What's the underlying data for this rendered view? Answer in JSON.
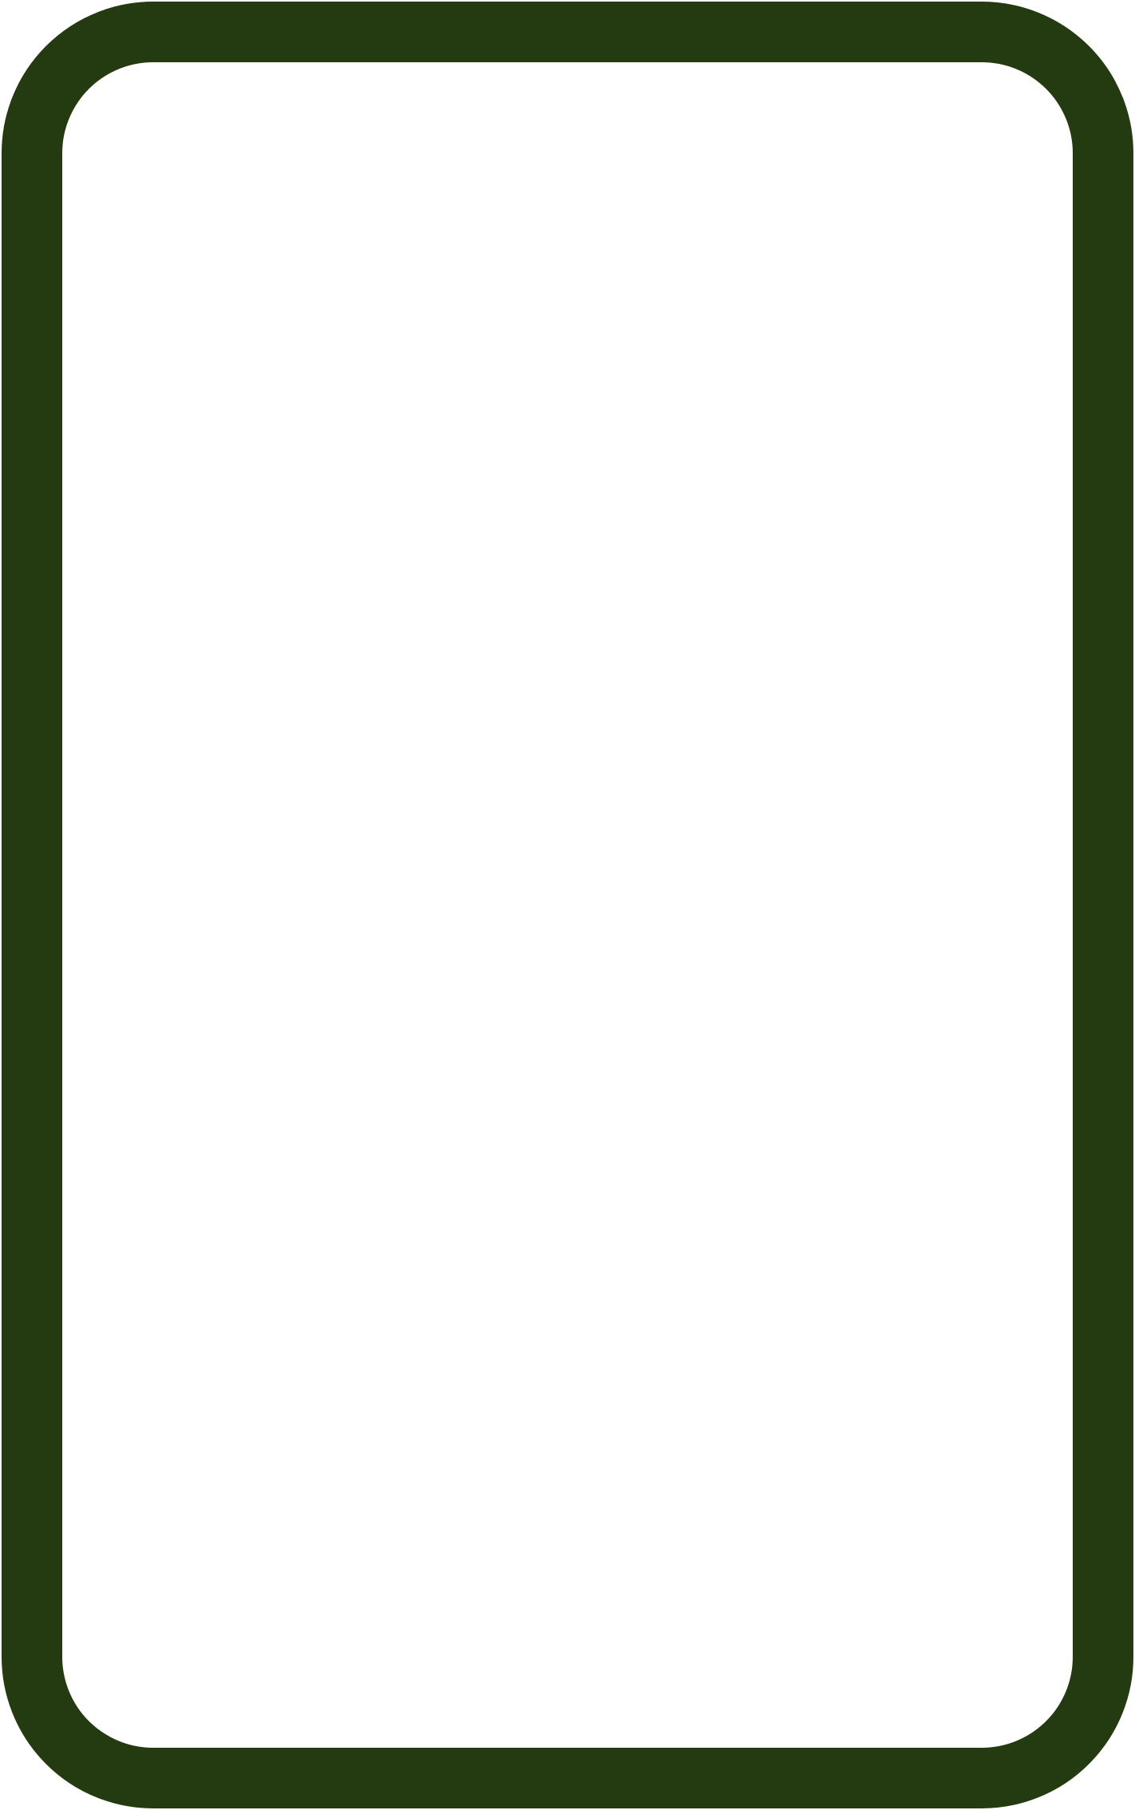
{
  "frame": {
    "icon": "rounded-rectangle-outline-icon",
    "stroke_color": "#243a10",
    "fill_color": "#ffffff"
  }
}
